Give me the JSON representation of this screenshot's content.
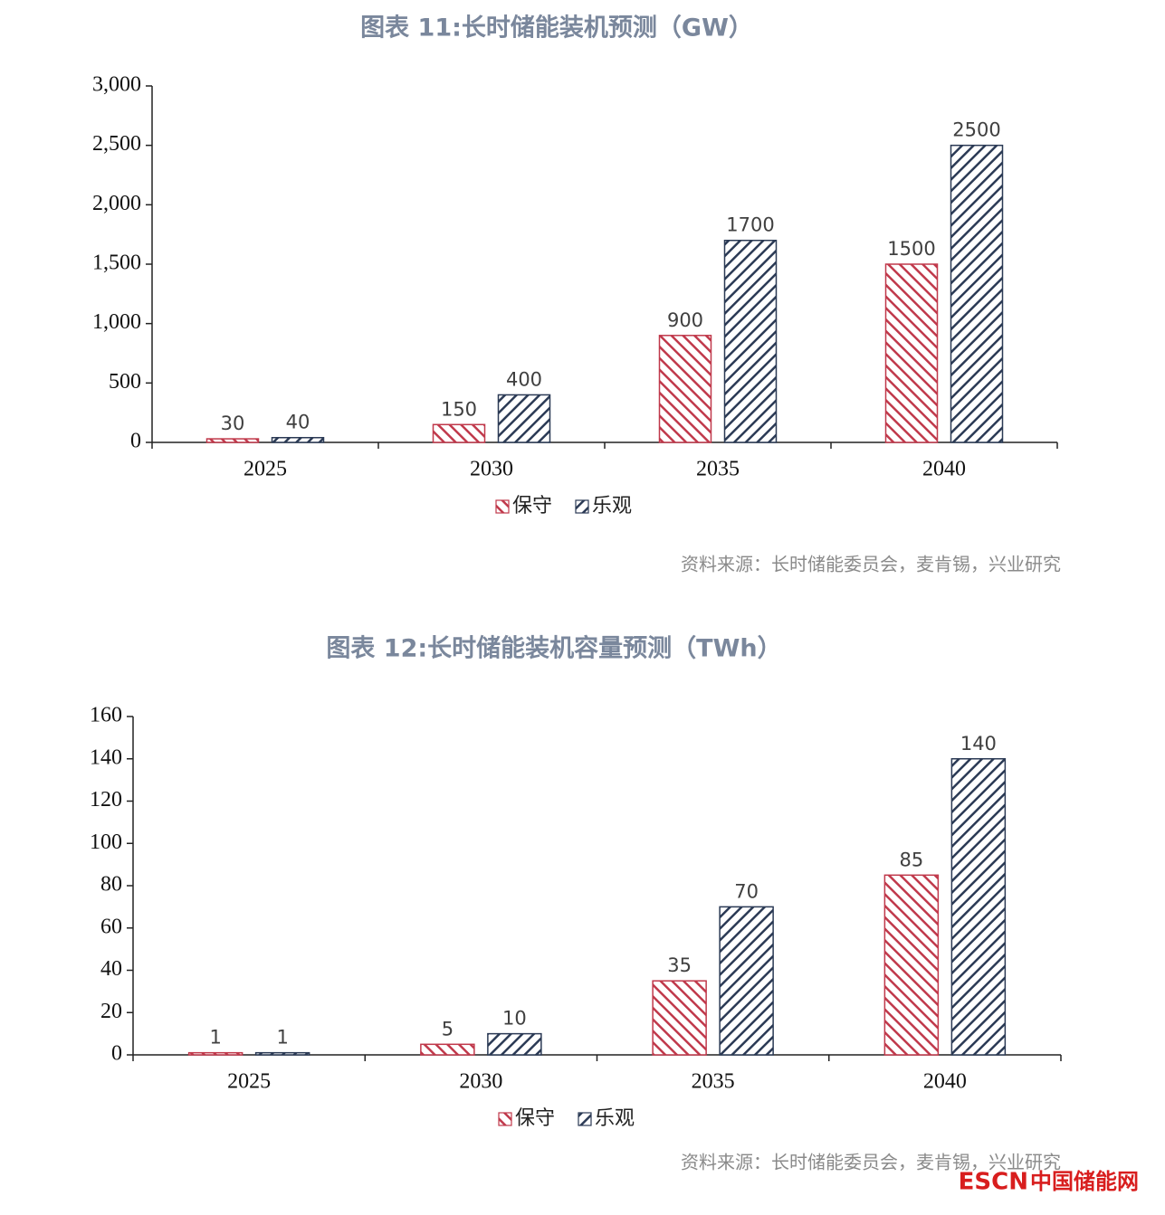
{
  "chart_data": [
    {
      "type": "bar",
      "title": "图表 11:长时储能装机预测（GW）",
      "categories": [
        "2025",
        "2030",
        "2035",
        "2040"
      ],
      "series": [
        {
          "name": "保守",
          "color": "#c0394b",
          "values": [
            30,
            150,
            900,
            1500
          ]
        },
        {
          "name": "乐观",
          "color": "#2b3a55",
          "values": [
            40,
            400,
            1700,
            2500
          ]
        }
      ],
      "ylim": [
        0,
        3000
      ],
      "yticks": [
        0,
        500,
        {
          "value": 1000,
          "label": "1,000"
        },
        {
          "value": 1500,
          "label": "1,500"
        },
        {
          "value": 2000,
          "label": "2,000"
        },
        {
          "value": 2500,
          "label": "2,500"
        },
        {
          "value": 3000,
          "label": "3,000"
        }
      ],
      "grid": false,
      "legend": "bottom",
      "source": "资料来源：长时储能委员会，麦肯锡，兴业研究"
    },
    {
      "type": "bar",
      "title": "图表 12:长时储能装机容量预测（TWh）",
      "categories": [
        "2025",
        "2030",
        "2035",
        "2040"
      ],
      "series": [
        {
          "name": "保守",
          "color": "#c0394b",
          "values": [
            1,
            5,
            35,
            85
          ]
        },
        {
          "name": "乐观",
          "color": "#2b3a55",
          "values": [
            1,
            10,
            70,
            140
          ]
        }
      ],
      "ylim": [
        0,
        160
      ],
      "yticks": [
        0,
        20,
        40,
        60,
        80,
        100,
        120,
        140,
        160
      ],
      "grid": false,
      "legend": "bottom",
      "source": "资料来源：长时储能委员会，麦肯锡，兴业研究"
    }
  ],
  "watermark": {
    "brand": "ESCN",
    "site": "中国储能网"
  }
}
